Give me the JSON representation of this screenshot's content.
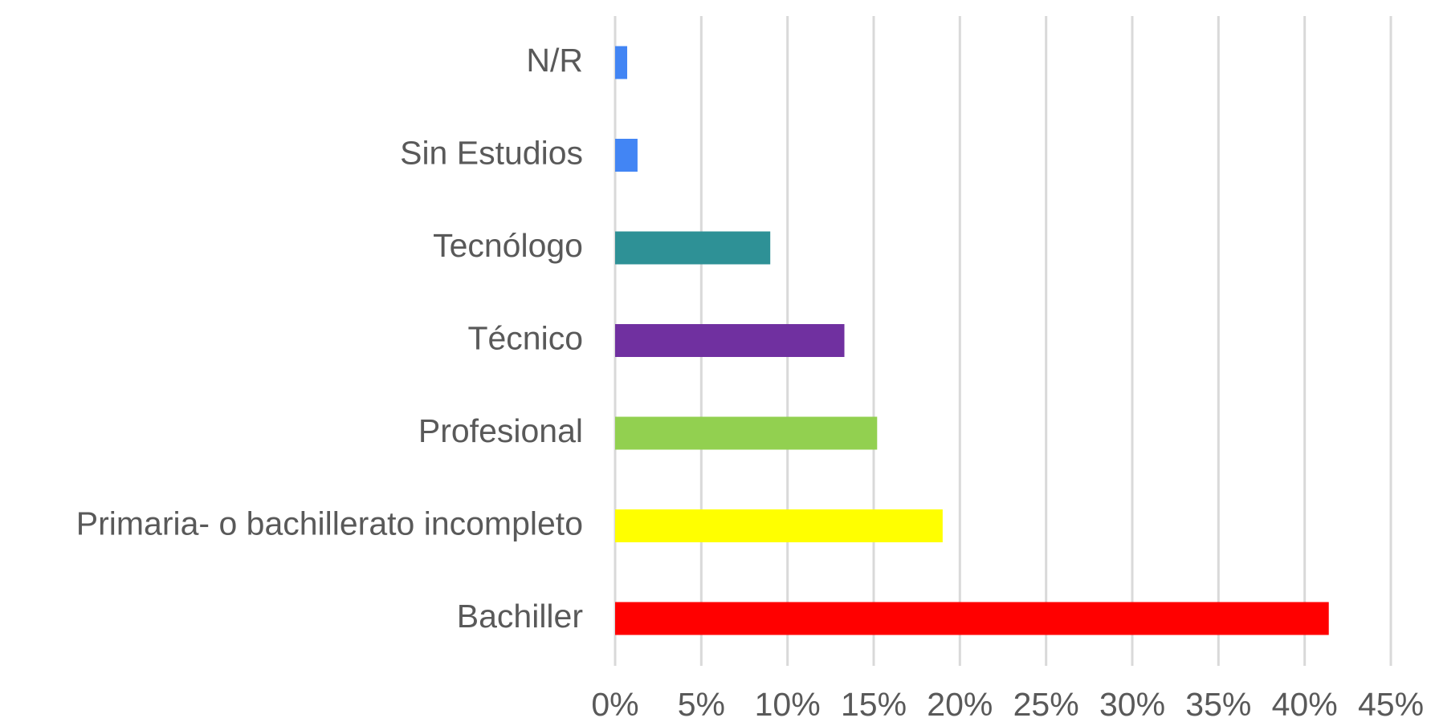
{
  "chart_data": {
    "type": "bar",
    "orientation": "horizontal",
    "categories": [
      "N/R",
      "Sin Estudios",
      "Tecnólogo",
      "Técnico",
      "Profesional",
      "Primaria- o bachillerato incompleto",
      "Bachiller"
    ],
    "values": [
      0.7,
      1.3,
      9.0,
      13.3,
      15.2,
      19.0,
      41.4
    ],
    "colors": [
      "#4285f4",
      "#4285f4",
      "#2e9196",
      "#7030a0",
      "#92d050",
      "#ffff00",
      "#ff0000"
    ],
    "xlim": [
      0,
      45
    ],
    "xticks": [
      {
        "value": 0,
        "label": "0%"
      },
      {
        "value": 5,
        "label": "5%"
      },
      {
        "value": 10,
        "label": "10%"
      },
      {
        "value": 15,
        "label": "15%"
      },
      {
        "value": 20,
        "label": "20%"
      },
      {
        "value": 25,
        "label": "25%"
      },
      {
        "value": 30,
        "label": "30%"
      },
      {
        "value": 35,
        "label": "35%"
      },
      {
        "value": 40,
        "label": "40%"
      },
      {
        "value": 45,
        "label": "45%"
      }
    ],
    "grid": true
  }
}
